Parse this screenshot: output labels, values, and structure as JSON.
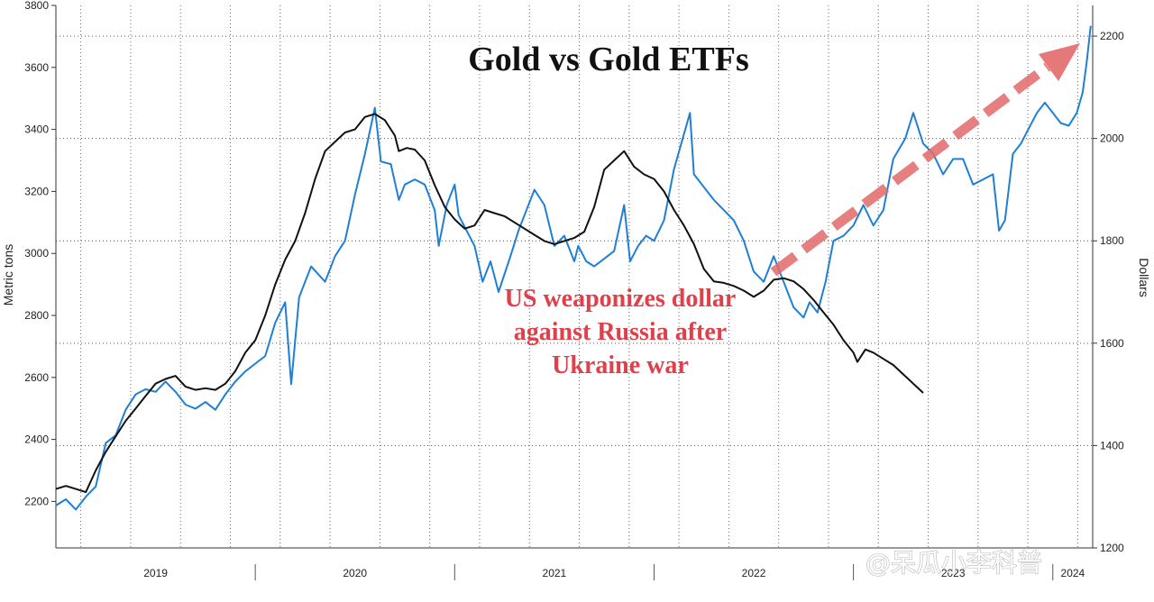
{
  "chart_data": {
    "type": "line",
    "title": "Gold vs Gold ETFs",
    "annotation": [
      "US weaponizes dollar",
      "against Russia after",
      "Ukraine war"
    ],
    "watermark": "@呆瓜小李科普",
    "y_left": {
      "label": "Metric tons",
      "ticks": [
        2200,
        2400,
        2600,
        2800,
        3000,
        3200,
        3400,
        3600,
        3800
      ],
      "lim": [
        2050,
        3800
      ]
    },
    "y_right": {
      "label": "Dollars",
      "ticks": [
        1200,
        1400,
        1600,
        1800,
        2000,
        2200
      ],
      "lim": [
        1200,
        2260
      ]
    },
    "x_labels": [
      "2019",
      "2020",
      "2021",
      "2022",
      "2023",
      "2024"
    ],
    "x_range": [
      2019.0,
      2024.2
    ],
    "grid": true,
    "legend": "none",
    "colors": {
      "gold_price": "#1f7fd6",
      "etf_holdings": "#111111",
      "arrow": "#e26a6a",
      "annotation": "#e0404a"
    },
    "series": [
      {
        "axis": "right",
        "points": [
          [
            2019.0,
            1283
          ],
          [
            2019.05,
            1295
          ],
          [
            2019.1,
            1275
          ],
          [
            2019.15,
            1300
          ],
          [
            2019.2,
            1320
          ],
          [
            2019.25,
            1405
          ],
          [
            2019.3,
            1420
          ],
          [
            2019.35,
            1470
          ],
          [
            2019.4,
            1500
          ],
          [
            2019.45,
            1510
          ],
          [
            2019.5,
            1505
          ],
          [
            2019.55,
            1525
          ],
          [
            2019.6,
            1505
          ],
          [
            2019.65,
            1480
          ],
          [
            2019.7,
            1472
          ],
          [
            2019.75,
            1485
          ],
          [
            2019.8,
            1470
          ],
          [
            2019.85,
            1500
          ],
          [
            2019.9,
            1525
          ],
          [
            2019.95,
            1545
          ],
          [
            2020.0,
            1560
          ],
          [
            2020.05,
            1575
          ],
          [
            2020.1,
            1640
          ],
          [
            2020.15,
            1680
          ],
          [
            2020.18,
            1520
          ],
          [
            2020.22,
            1690
          ],
          [
            2020.28,
            1750
          ],
          [
            2020.35,
            1720
          ],
          [
            2020.4,
            1770
          ],
          [
            2020.45,
            1800
          ],
          [
            2020.5,
            1890
          ],
          [
            2020.55,
            1970
          ],
          [
            2020.6,
            2060
          ],
          [
            2020.63,
            1955
          ],
          [
            2020.68,
            1950
          ],
          [
            2020.72,
            1880
          ],
          [
            2020.75,
            1910
          ],
          [
            2020.8,
            1920
          ],
          [
            2020.85,
            1910
          ],
          [
            2020.9,
            1860
          ],
          [
            2020.92,
            1790
          ],
          [
            2020.96,
            1870
          ],
          [
            2021.0,
            1910
          ],
          [
            2021.02,
            1850
          ],
          [
            2021.06,
            1820
          ],
          [
            2021.1,
            1790
          ],
          [
            2021.14,
            1720
          ],
          [
            2021.18,
            1760
          ],
          [
            2021.22,
            1700
          ],
          [
            2021.28,
            1770
          ],
          [
            2021.32,
            1820
          ],
          [
            2021.36,
            1860
          ],
          [
            2021.4,
            1900
          ],
          [
            2021.45,
            1870
          ],
          [
            2021.5,
            1790
          ],
          [
            2021.55,
            1810
          ],
          [
            2021.6,
            1760
          ],
          [
            2021.62,
            1790
          ],
          [
            2021.66,
            1760
          ],
          [
            2021.7,
            1750
          ],
          [
            2021.75,
            1765
          ],
          [
            2021.8,
            1780
          ],
          [
            2021.85,
            1870
          ],
          [
            2021.88,
            1760
          ],
          [
            2021.92,
            1790
          ],
          [
            2021.96,
            1810
          ],
          [
            2022.0,
            1800
          ],
          [
            2022.05,
            1840
          ],
          [
            2022.1,
            1940
          ],
          [
            2022.18,
            2050
          ],
          [
            2022.2,
            1930
          ],
          [
            2022.26,
            1900
          ],
          [
            2022.3,
            1880
          ],
          [
            2022.35,
            1860
          ],
          [
            2022.4,
            1840
          ],
          [
            2022.45,
            1800
          ],
          [
            2022.5,
            1740
          ],
          [
            2022.55,
            1720
          ],
          [
            2022.6,
            1770
          ],
          [
            2022.65,
            1720
          ],
          [
            2022.7,
            1670
          ],
          [
            2022.75,
            1650
          ],
          [
            2022.78,
            1680
          ],
          [
            2022.82,
            1660
          ],
          [
            2022.86,
            1720
          ],
          [
            2022.9,
            1800
          ],
          [
            2022.95,
            1810
          ],
          [
            2023.0,
            1830
          ],
          [
            2023.05,
            1870
          ],
          [
            2023.1,
            1830
          ],
          [
            2023.15,
            1860
          ],
          [
            2023.2,
            1960
          ],
          [
            2023.26,
            2000
          ],
          [
            2023.3,
            2050
          ],
          [
            2023.35,
            1990
          ],
          [
            2023.4,
            1970
          ],
          [
            2023.45,
            1930
          ],
          [
            2023.5,
            1960
          ],
          [
            2023.55,
            1960
          ],
          [
            2023.6,
            1910
          ],
          [
            2023.65,
            1920
          ],
          [
            2023.7,
            1930
          ],
          [
            2023.73,
            1820
          ],
          [
            2023.76,
            1840
          ],
          [
            2023.8,
            1970
          ],
          [
            2023.84,
            1990
          ],
          [
            2023.88,
            2020
          ],
          [
            2023.92,
            2050
          ],
          [
            2023.96,
            2070
          ],
          [
            2024.0,
            2050
          ],
          [
            2024.04,
            2030
          ],
          [
            2024.08,
            2025
          ],
          [
            2024.12,
            2050
          ],
          [
            2024.15,
            2090
          ],
          [
            2024.17,
            2150
          ],
          [
            2024.19,
            2220
          ]
        ]
      },
      {
        "axis": "left",
        "points": [
          [
            2019.0,
            2240
          ],
          [
            2019.05,
            2250
          ],
          [
            2019.1,
            2240
          ],
          [
            2019.15,
            2230
          ],
          [
            2019.2,
            2300
          ],
          [
            2019.25,
            2360
          ],
          [
            2019.3,
            2410
          ],
          [
            2019.35,
            2460
          ],
          [
            2019.4,
            2500
          ],
          [
            2019.45,
            2540
          ],
          [
            2019.5,
            2580
          ],
          [
            2019.55,
            2595
          ],
          [
            2019.6,
            2605
          ],
          [
            2019.65,
            2570
          ],
          [
            2019.7,
            2560
          ],
          [
            2019.75,
            2565
          ],
          [
            2019.8,
            2560
          ],
          [
            2019.85,
            2580
          ],
          [
            2019.9,
            2620
          ],
          [
            2019.95,
            2680
          ],
          [
            2020.0,
            2720
          ],
          [
            2020.05,
            2800
          ],
          [
            2020.1,
            2900
          ],
          [
            2020.15,
            2980
          ],
          [
            2020.2,
            3040
          ],
          [
            2020.25,
            3130
          ],
          [
            2020.3,
            3240
          ],
          [
            2020.35,
            3330
          ],
          [
            2020.4,
            3360
          ],
          [
            2020.45,
            3390
          ],
          [
            2020.5,
            3400
          ],
          [
            2020.55,
            3440
          ],
          [
            2020.6,
            3450
          ],
          [
            2020.65,
            3430
          ],
          [
            2020.7,
            3380
          ],
          [
            2020.72,
            3330
          ],
          [
            2020.76,
            3340
          ],
          [
            2020.8,
            3335
          ],
          [
            2020.85,
            3300
          ],
          [
            2020.9,
            3220
          ],
          [
            2020.95,
            3150
          ],
          [
            2021.0,
            3110
          ],
          [
            2021.05,
            3080
          ],
          [
            2021.1,
            3090
          ],
          [
            2021.15,
            3140
          ],
          [
            2021.2,
            3130
          ],
          [
            2021.25,
            3120
          ],
          [
            2021.3,
            3100
          ],
          [
            2021.35,
            3080
          ],
          [
            2021.4,
            3060
          ],
          [
            2021.45,
            3040
          ],
          [
            2021.5,
            3030
          ],
          [
            2021.55,
            3040
          ],
          [
            2021.6,
            3050
          ],
          [
            2021.65,
            3070
          ],
          [
            2021.7,
            3150
          ],
          [
            2021.75,
            3270
          ],
          [
            2021.8,
            3300
          ],
          [
            2021.85,
            3330
          ],
          [
            2021.9,
            3280
          ],
          [
            2021.95,
            3255
          ],
          [
            2022.0,
            3240
          ],
          [
            2022.05,
            3200
          ],
          [
            2022.1,
            3140
          ],
          [
            2022.15,
            3090
          ],
          [
            2022.2,
            3030
          ],
          [
            2022.25,
            2950
          ],
          [
            2022.3,
            2910
          ],
          [
            2022.35,
            2905
          ],
          [
            2022.4,
            2895
          ],
          [
            2022.45,
            2880
          ],
          [
            2022.5,
            2860
          ],
          [
            2022.55,
            2880
          ],
          [
            2022.6,
            2915
          ],
          [
            2022.65,
            2920
          ],
          [
            2022.7,
            2910
          ],
          [
            2022.75,
            2885
          ],
          [
            2022.8,
            2850
          ],
          [
            2022.85,
            2810
          ],
          [
            2022.9,
            2770
          ],
          [
            2022.95,
            2720
          ],
          [
            2023.0,
            2680
          ],
          [
            2023.02,
            2650
          ],
          [
            2023.06,
            2690
          ],
          [
            2023.1,
            2680
          ],
          [
            2023.15,
            2660
          ],
          [
            2023.2,
            2640
          ],
          [
            2023.25,
            2610
          ],
          [
            2023.3,
            2580
          ],
          [
            2023.35,
            2550
          ]
        ]
      }
    ]
  }
}
